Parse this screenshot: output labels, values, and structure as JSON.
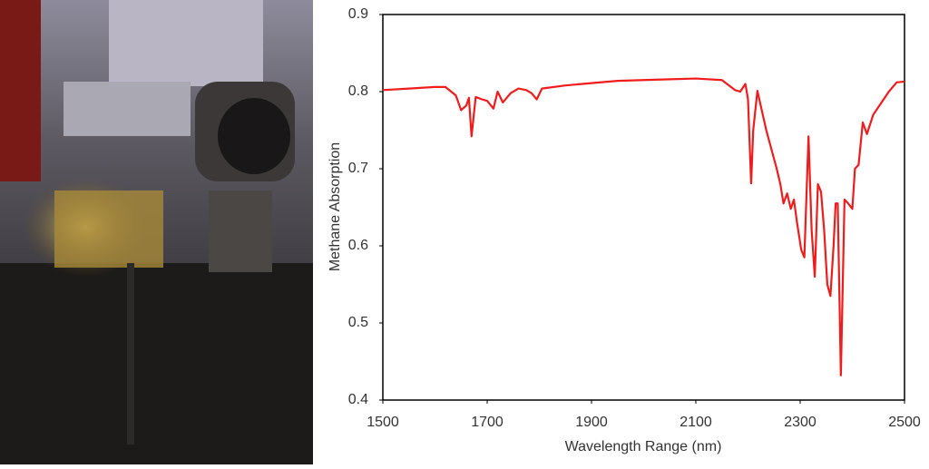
{
  "chart_data": {
    "type": "line",
    "xlabel": "Wavelength Range (nm)",
    "ylabel": "Methane Absorption",
    "x": [
      1500,
      1550,
      1600,
      1620,
      1640,
      1650,
      1660,
      1665,
      1670,
      1678,
      1690,
      1700,
      1712,
      1720,
      1730,
      1745,
      1760,
      1775,
      1785,
      1795,
      1805,
      1850,
      1900,
      1950,
      2000,
      2050,
      2100,
      2150,
      2175,
      2185,
      2195,
      2200,
      2206,
      2210,
      2218,
      2225,
      2235,
      2245,
      2255,
      2262,
      2268,
      2275,
      2282,
      2288,
      2294,
      2302,
      2308,
      2316,
      2322,
      2328,
      2334,
      2340,
      2346,
      2352,
      2358,
      2364,
      2368,
      2372,
      2378,
      2385,
      2392,
      2400,
      2405,
      2412,
      2420,
      2428,
      2440,
      2455,
      2470,
      2485,
      2500
    ],
    "series": [
      {
        "name": "Methane Absorption",
        "color": "#ee1c1c",
        "values": [
          0.802,
          0.804,
          0.806,
          0.806,
          0.795,
          0.776,
          0.782,
          0.792,
          0.742,
          0.793,
          0.79,
          0.788,
          0.778,
          0.8,
          0.786,
          0.798,
          0.804,
          0.802,
          0.798,
          0.79,
          0.804,
          0.808,
          0.811,
          0.814,
          0.815,
          0.816,
          0.817,
          0.815,
          0.802,
          0.8,
          0.81,
          0.79,
          0.681,
          0.75,
          0.801,
          0.78,
          0.75,
          0.725,
          0.7,
          0.68,
          0.655,
          0.668,
          0.648,
          0.66,
          0.63,
          0.595,
          0.585,
          0.742,
          0.62,
          0.56,
          0.68,
          0.67,
          0.62,
          0.55,
          0.535,
          0.6,
          0.655,
          0.655,
          0.432,
          0.66,
          0.655,
          0.648,
          0.7,
          0.705,
          0.76,
          0.745,
          0.77,
          0.785,
          0.8,
          0.812,
          0.813
        ]
      }
    ],
    "xlim": [
      1500,
      2500
    ],
    "xticks": [
      1500,
      1700,
      1900,
      2100,
      2300,
      2500
    ],
    "ylim": [
      0.4,
      0.9
    ],
    "yticks": [
      0.4,
      0.5,
      0.6,
      0.7,
      0.8,
      0.9
    ]
  }
}
